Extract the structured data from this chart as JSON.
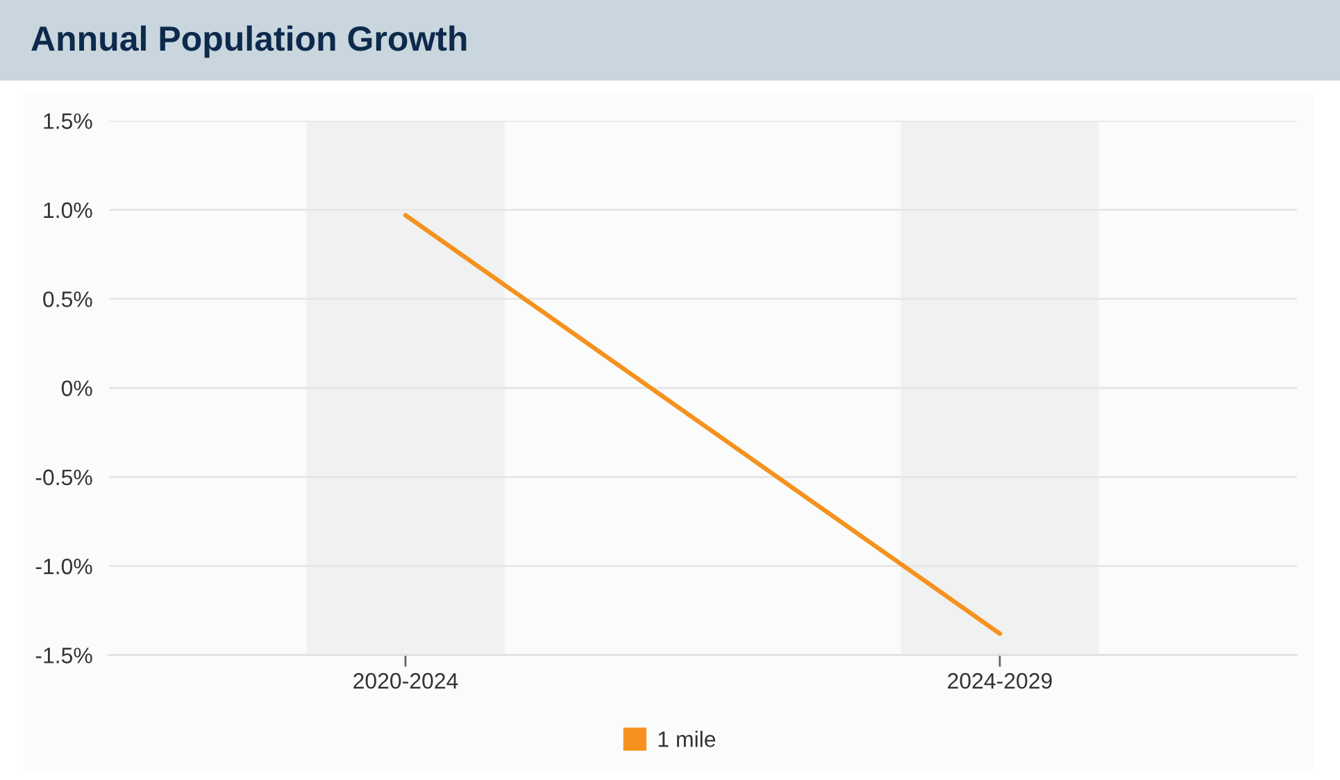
{
  "chart_data": {
    "type": "line",
    "title": "Annual Population Growth",
    "categories": [
      "2020-2024",
      "2024-2029"
    ],
    "series": [
      {
        "name": "1 mile",
        "color": "#f5921e",
        "values": [
          0.97,
          -1.38
        ]
      }
    ],
    "ylim": [
      -1.5,
      1.5
    ],
    "yticks": [
      {
        "value": -1.5,
        "label": "-1.5%"
      },
      {
        "value": -1.0,
        "label": "-1.0%"
      },
      {
        "value": -0.5,
        "label": "-0.5%"
      },
      {
        "value": 0,
        "label": "0%"
      },
      {
        "value": 0.5,
        "label": "0.5%"
      },
      {
        "value": 1.0,
        "label": "1.0%"
      },
      {
        "value": 1.5,
        "label": "1.5%"
      }
    ],
    "bands": [
      {
        "axis": "x",
        "from": "2020-2024",
        "to": "2020-2024",
        "color": "#f0f1f1"
      },
      {
        "axis": "x",
        "from": "2024-2029",
        "to": "2024-2029",
        "color": "#f0f1f1"
      }
    ],
    "grid": "y",
    "legend": "bottom"
  }
}
